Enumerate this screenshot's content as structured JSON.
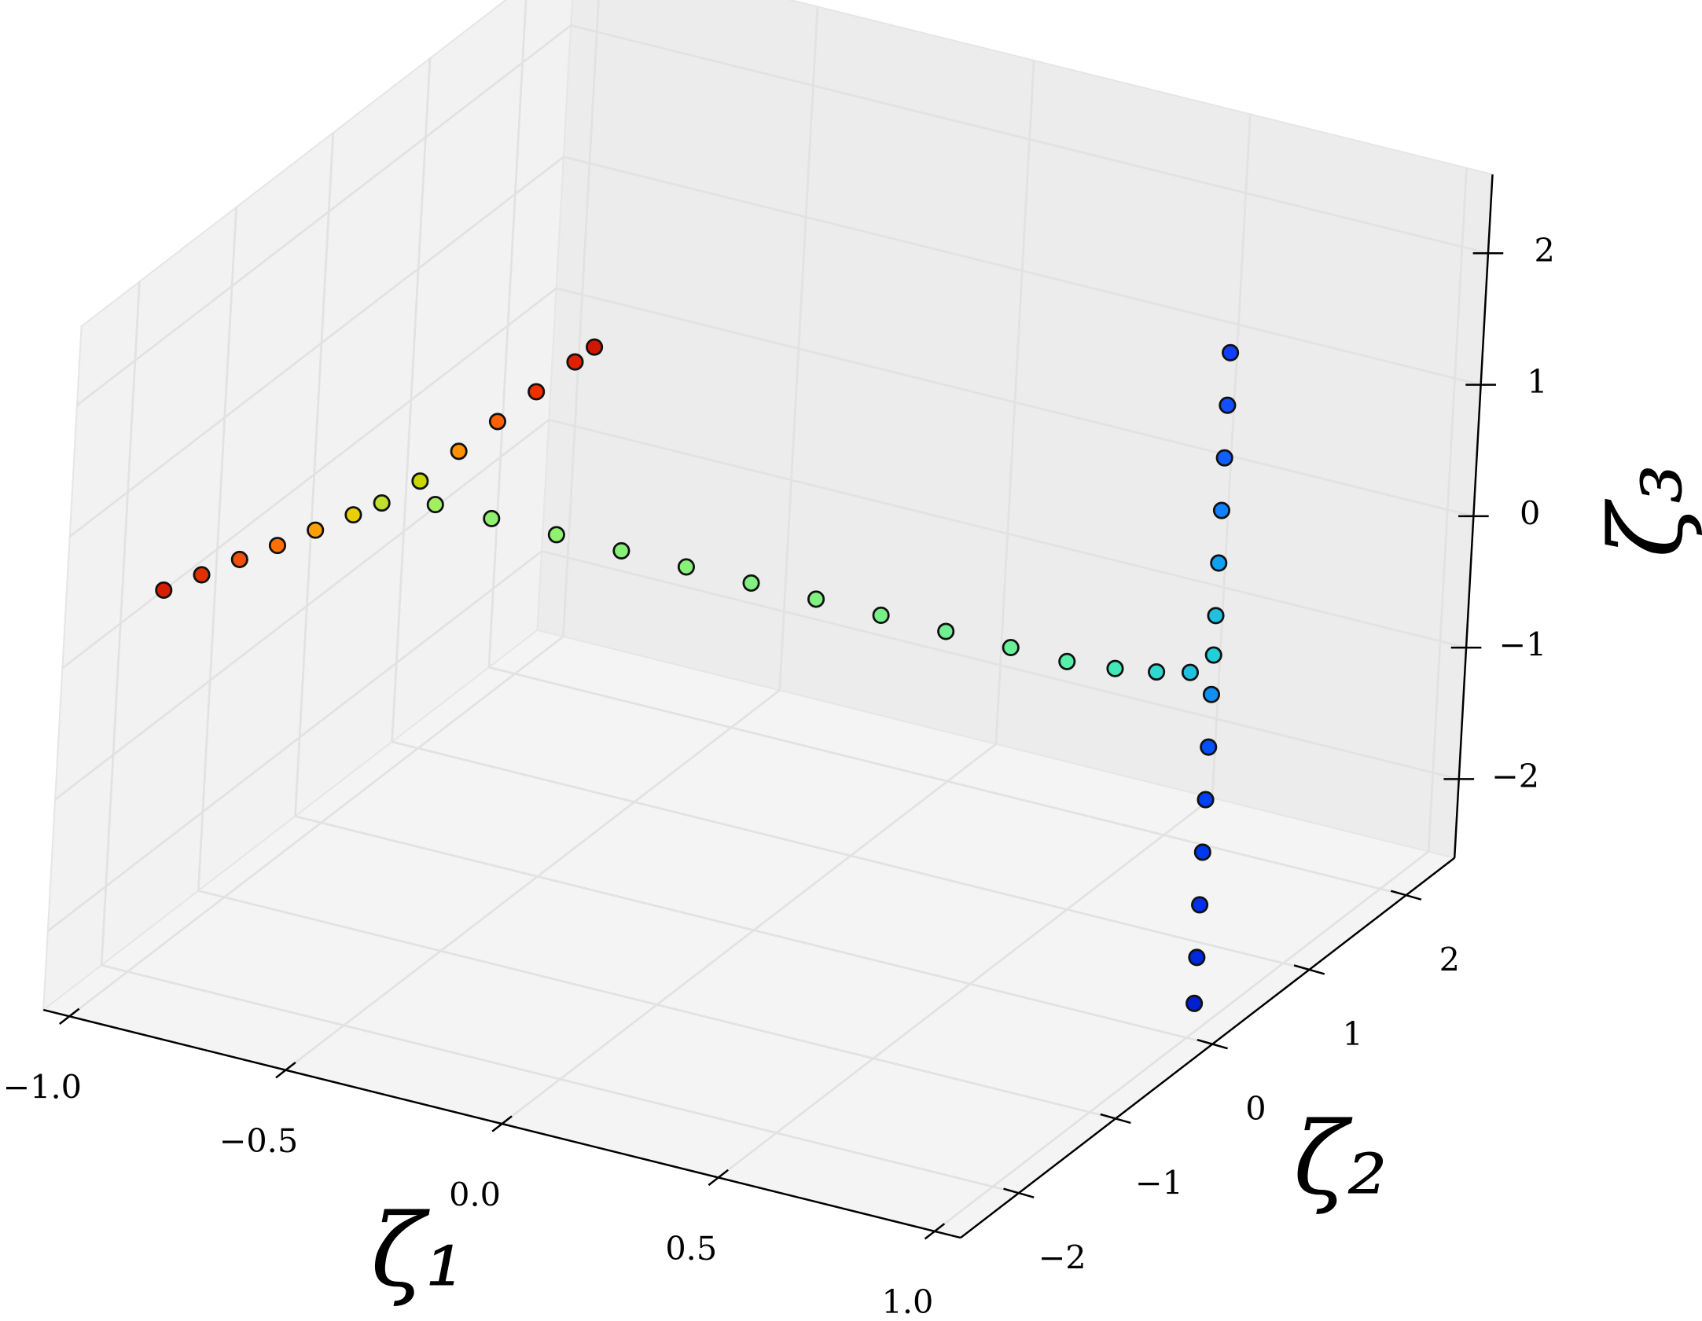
{
  "chart_data": {
    "type": "scatter3d",
    "x_label": "ζ₁",
    "y_label": "ζ₂",
    "z_label": "ζ₃",
    "xlim": [
      -1.06,
      1.06
    ],
    "ylim": [
      -2.6,
      2.5
    ],
    "zlim": [
      -2.6,
      2.6
    ],
    "xticks": [
      {
        "value": -1.0,
        "label": "−1.0"
      },
      {
        "value": -0.5,
        "label": "−0.5"
      },
      {
        "value": 0.0,
        "label": "0.0"
      },
      {
        "value": 0.5,
        "label": "0.5"
      },
      {
        "value": 1.0,
        "label": "1.0"
      }
    ],
    "yticks": [
      {
        "value": -2,
        "label": "−2"
      },
      {
        "value": -1,
        "label": "−1"
      },
      0,
      1,
      2
    ],
    "zticks": [
      {
        "value": -2,
        "label": "−2"
      },
      {
        "value": -1,
        "label": "−1"
      },
      0,
      1,
      2
    ],
    "grid": true,
    "series": [
      {
        "x": [
          -0.86,
          -0.86,
          -0.86,
          -0.86,
          -0.86,
          -0.86,
          -0.86,
          -0.86,
          -0.86,
          -0.86,
          -0.86,
          -0.86,
          -0.86,
          -0.78,
          -0.65,
          -0.5,
          -0.35,
          -0.2,
          -0.05,
          0.1,
          0.25,
          0.4,
          0.55,
          0.68,
          0.78,
          0.86,
          0.92,
          0.95,
          0.95,
          0.95,
          0.95,
          0.95,
          0.95,
          0.95,
          0.95,
          0.95,
          0.95,
          0.95,
          0.95,
          0.95,
          0.95
        ],
        "y": [
          -2.5,
          -2.1,
          -1.7,
          -1.3,
          -0.9,
          -0.5,
          -0.2,
          0.2,
          0.6,
          1.0,
          1.4,
          1.8,
          2.0,
          0,
          0,
          0,
          0,
          0,
          0,
          0,
          0,
          0,
          0,
          0,
          0.05,
          0.12,
          0.2,
          0.3,
          0.3,
          0.3,
          0.3,
          0.3,
          0.3,
          0.3,
          0.3,
          0.3,
          0.3,
          0.3,
          0.3,
          0.3,
          0.3
        ],
        "z": [
          0.7,
          0.59,
          0.48,
          0.36,
          0.25,
          0.14,
          0.06,
          0,
          0,
          0,
          0,
          0,
          0,
          0,
          0,
          0,
          0,
          0,
          0,
          0,
          0,
          0,
          0,
          0,
          0,
          0,
          0,
          2.4,
          2.0,
          1.6,
          1.2,
          0.8,
          0.4,
          0.1,
          -0.2,
          -0.6,
          -1.0,
          -1.4,
          -1.8,
          -2.2,
          -2.55
        ],
        "colors": [
          "#d42000",
          "#e03000",
          "#f05000",
          "#ff7000",
          "#ffa000",
          "#e8d000",
          "#c0e030",
          "#c8d800",
          "#ff9000",
          "#ff6000",
          "#f03000",
          "#e02000",
          "#d01800",
          "#a0f060",
          "#90f070",
          "#90f070",
          "#88f078",
          "#88f078",
          "#80f080",
          "#80f080",
          "#78f088",
          "#70f090",
          "#68f098",
          "#58f0a8",
          "#40e8b8",
          "#30d8d0",
          "#20c0e0",
          "#1040ff",
          "#1050ff",
          "#1060ff",
          "#1080ff",
          "#10a0f0",
          "#20c0e0",
          "#20d0d8",
          "#1090f0",
          "#0050ff",
          "#0040f8",
          "#0038f0",
          "#0030e8",
          "#0028e0",
          "#0020d0"
        ]
      }
    ]
  }
}
